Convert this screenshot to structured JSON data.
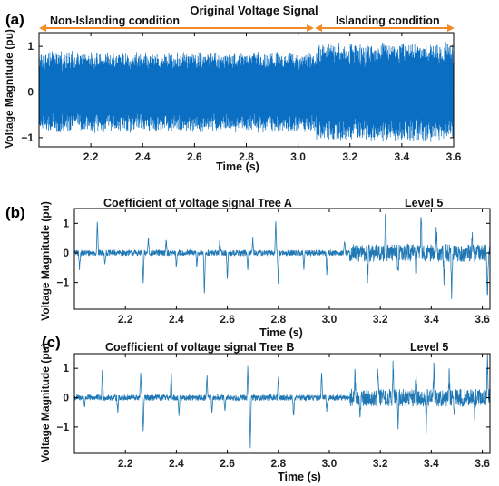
{
  "colors": {
    "signal": "#0a6fc2",
    "coef": "#1f77b4",
    "arrow": "#f28c28",
    "axis": "#000000"
  },
  "chart_data": [
    {
      "type": "line",
      "panel": "(a)",
      "title": "Original Voltage Signal",
      "annotations": [
        "Non-Islanding condition",
        "Islanding condition"
      ],
      "xlabel": "Time (s)",
      "ylabel": "Voltage Magnitude (pu)",
      "xlim": [
        2.0,
        3.6
      ],
      "ylim": [
        -1.2,
        1.3
      ],
      "xticks": [
        2.2,
        2.4,
        2.6,
        2.8,
        3.0,
        3.2,
        3.4,
        3.6
      ],
      "xtick_labels": [
        "2.2",
        "2.4",
        "2.6",
        "2.8",
        "3.0",
        "3.2",
        "3.4",
        "3.6"
      ],
      "yticks": [
        -1,
        0,
        1
      ],
      "ytick_labels": [
        "−1",
        "0",
        "1"
      ],
      "event_time": 3.07,
      "series": [
        {
          "x_range": [
            2.0,
            3.07
          ],
          "amplitude_envelope": 0.85
        },
        {
          "x_range": [
            3.07,
            3.6
          ],
          "amplitude_envelope": 1.05
        }
      ]
    },
    {
      "type": "line",
      "panel": "(b)",
      "title": "Coefficient of voltage signal Tree A",
      "level_label": "Level 5",
      "xlabel": "Time (s)",
      "ylabel": "Voltage Magnitude (pu)",
      "xlim": [
        2.0,
        3.63
      ],
      "ylim": [
        -1.9,
        1.5
      ],
      "xticks": [
        2.2,
        2.4,
        2.6,
        2.8,
        3.0,
        3.2,
        3.4,
        3.6
      ],
      "xtick_labels": [
        "2.2",
        "2.4",
        "2.6",
        "2.8",
        "3.0",
        "3.2",
        "3.4",
        "3.6"
      ],
      "yticks": [
        -1,
        0,
        1
      ],
      "ytick_labels": [
        "−1",
        "0",
        "1"
      ],
      "baseline_noise": 0.1,
      "islanding_noise": 0.3,
      "islanding_start": 3.08,
      "spikes": [
        {
          "t": 2.02,
          "v": -0.55
        },
        {
          "t": 2.09,
          "v": 1.15
        },
        {
          "t": 2.12,
          "v": -0.35
        },
        {
          "t": 2.27,
          "v": -1.1
        },
        {
          "t": 2.29,
          "v": 0.55
        },
        {
          "t": 2.36,
          "v": 0.5
        },
        {
          "t": 2.4,
          "v": -0.5
        },
        {
          "t": 2.48,
          "v": -0.45
        },
        {
          "t": 2.51,
          "v": -1.5
        },
        {
          "t": 2.57,
          "v": 0.45
        },
        {
          "t": 2.6,
          "v": -0.95
        },
        {
          "t": 2.68,
          "v": -0.6
        },
        {
          "t": 2.7,
          "v": 0.5
        },
        {
          "t": 2.79,
          "v": 1.15
        },
        {
          "t": 2.8,
          "v": -1.05
        },
        {
          "t": 2.9,
          "v": -0.55
        },
        {
          "t": 2.99,
          "v": -0.75
        },
        {
          "t": 3.06,
          "v": 0.35
        },
        {
          "t": 3.15,
          "v": -0.9
        },
        {
          "t": 3.22,
          "v": 1.3
        },
        {
          "t": 3.27,
          "v": -0.75
        },
        {
          "t": 3.34,
          "v": -0.8
        },
        {
          "t": 3.36,
          "v": 1.45
        },
        {
          "t": 3.42,
          "v": 0.8
        },
        {
          "t": 3.45,
          "v": -0.95
        },
        {
          "t": 3.48,
          "v": -1.5
        },
        {
          "t": 3.56,
          "v": 0.7
        },
        {
          "t": 3.62,
          "v": -1.55
        }
      ]
    },
    {
      "type": "line",
      "panel": "(c)",
      "title": "Coefficient of voltage signal Tree B",
      "level_label": "Level 5",
      "xlabel": "Time (s)",
      "ylabel": "Voltage Magnitude (pu)",
      "xlim": [
        2.0,
        3.63
      ],
      "ylim": [
        -1.9,
        1.5
      ],
      "xticks": [
        2.2,
        2.4,
        2.6,
        2.8,
        3.0,
        3.2,
        3.4,
        3.6
      ],
      "xtick_labels": [
        "2.2",
        "2.4",
        "2.6",
        "2.8",
        "3.0",
        "3.2",
        "3.4",
        "3.6"
      ],
      "yticks": [
        -1,
        0,
        1
      ],
      "ytick_labels": [
        "−1",
        "0",
        "1"
      ],
      "baseline_noise": 0.1,
      "islanding_noise": 0.3,
      "islanding_start": 3.08,
      "spikes": [
        {
          "t": 2.04,
          "v": -0.3
        },
        {
          "t": 2.11,
          "v": 1.0
        },
        {
          "t": 2.17,
          "v": -0.5
        },
        {
          "t": 2.26,
          "v": 0.85
        },
        {
          "t": 2.27,
          "v": -1.25
        },
        {
          "t": 2.38,
          "v": 0.8
        },
        {
          "t": 2.41,
          "v": -0.6
        },
        {
          "t": 2.52,
          "v": 0.8
        },
        {
          "t": 2.54,
          "v": -0.6
        },
        {
          "t": 2.59,
          "v": -0.5
        },
        {
          "t": 2.68,
          "v": 1.0
        },
        {
          "t": 2.69,
          "v": -1.7
        },
        {
          "t": 2.8,
          "v": 0.75
        },
        {
          "t": 2.86,
          "v": -0.7
        },
        {
          "t": 2.97,
          "v": 0.9
        },
        {
          "t": 2.99,
          "v": -0.5
        },
        {
          "t": 3.1,
          "v": 0.85
        },
        {
          "t": 3.12,
          "v": -0.8
        },
        {
          "t": 3.19,
          "v": 1.0
        },
        {
          "t": 3.25,
          "v": 1.2
        },
        {
          "t": 3.27,
          "v": -0.9
        },
        {
          "t": 3.34,
          "v": 0.95
        },
        {
          "t": 3.38,
          "v": -0.95
        },
        {
          "t": 3.41,
          "v": 0.95
        },
        {
          "t": 3.47,
          "v": 0.8
        },
        {
          "t": 3.49,
          "v": -0.85
        },
        {
          "t": 3.57,
          "v": -0.6
        },
        {
          "t": 3.62,
          "v": 1.3
        }
      ]
    }
  ]
}
